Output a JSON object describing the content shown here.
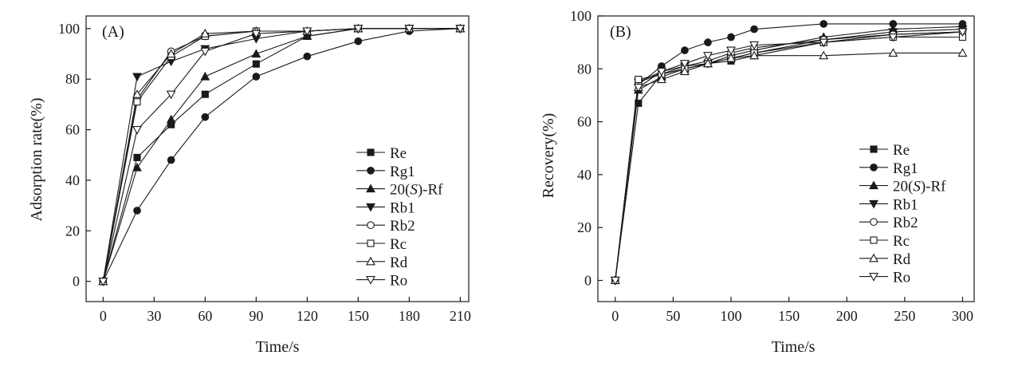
{
  "chart_data": [
    {
      "type": "line",
      "panel": "(A)",
      "xlabel": "Time/s",
      "ylabel": "Adsorption rate(%)",
      "xlim": [
        -10,
        215
      ],
      "ylim": [
        -8,
        105
      ],
      "xticks": [
        0,
        30,
        60,
        90,
        120,
        150,
        180,
        210
      ],
      "yticks": [
        0,
        20,
        40,
        60,
        80,
        100
      ],
      "legend_position": "bottom-right",
      "series": [
        {
          "name": "Re",
          "name_parts": [
            "Re"
          ],
          "marker": "square-filled",
          "x": [
            0,
            20,
            40,
            60,
            90,
            120,
            150,
            180,
            210
          ],
          "y": [
            0,
            49,
            62,
            74,
            86,
            97,
            100,
            100,
            100
          ]
        },
        {
          "name": "Rg1",
          "name_parts": [
            "Rg1"
          ],
          "marker": "circle-filled",
          "x": [
            0,
            20,
            40,
            60,
            90,
            120,
            150,
            180,
            210
          ],
          "y": [
            0,
            28,
            48,
            65,
            81,
            89,
            95,
            99,
            100
          ]
        },
        {
          "name": "20(S)-Rf",
          "name_parts": [
            "20(",
            "S",
            ")-Rf"
          ],
          "marker": "triangle-up-filled",
          "x": [
            0,
            20,
            40,
            60,
            90,
            120,
            150,
            180,
            210
          ],
          "y": [
            0,
            45,
            64,
            81,
            90,
            97,
            100,
            100,
            100
          ]
        },
        {
          "name": "Rb1",
          "name_parts": [
            "Rb1"
          ],
          "marker": "triangle-down-filled",
          "x": [
            0,
            20,
            40,
            60,
            90,
            120,
            150,
            180,
            210
          ],
          "y": [
            0,
            81,
            87,
            92,
            96,
            99,
            100,
            100,
            100
          ]
        },
        {
          "name": "Rb2",
          "name_parts": [
            "Rb2"
          ],
          "marker": "circle-open",
          "x": [
            0,
            20,
            40,
            60,
            90,
            120,
            150,
            180,
            210
          ],
          "y": [
            0,
            72,
            91,
            97,
            99,
            99,
            100,
            100,
            100
          ]
        },
        {
          "name": "Rc",
          "name_parts": [
            "Rc"
          ],
          "marker": "square-open",
          "x": [
            0,
            20,
            40,
            60,
            90,
            120,
            150,
            180,
            210
          ],
          "y": [
            0,
            71,
            89,
            97,
            99,
            99,
            100,
            100,
            100
          ]
        },
        {
          "name": "Rd",
          "name_parts": [
            "Rd"
          ],
          "marker": "triangle-up-open",
          "x": [
            0,
            20,
            40,
            60,
            90,
            120,
            150,
            180,
            210
          ],
          "y": [
            0,
            74,
            90,
            98,
            99,
            99,
            100,
            100,
            100
          ]
        },
        {
          "name": "Ro",
          "name_parts": [
            "Ro"
          ],
          "marker": "triangle-down-open",
          "x": [
            0,
            20,
            40,
            60,
            90,
            120,
            150,
            180,
            210
          ],
          "y": [
            0,
            60,
            74,
            91,
            98,
            99,
            100,
            100,
            100
          ]
        }
      ]
    },
    {
      "type": "line",
      "panel": "(B)",
      "xlabel": "Time/s",
      "ylabel": "Recovery(%)",
      "xlim": [
        -15,
        310
      ],
      "ylim": [
        -8,
        100
      ],
      "xticks": [
        0,
        50,
        100,
        150,
        200,
        250,
        300
      ],
      "yticks": [
        0,
        20,
        40,
        60,
        80,
        100
      ],
      "legend_position": "bottom-right",
      "series": [
        {
          "name": "Re",
          "name_parts": [
            "Re"
          ],
          "marker": "square-filled",
          "x": [
            0,
            20,
            40,
            60,
            80,
            100,
            120,
            180,
            240,
            300
          ],
          "y": [
            0,
            67,
            78,
            80,
            82,
            83,
            85,
            90,
            93,
            94
          ]
        },
        {
          "name": "Rg1",
          "name_parts": [
            "Rg1"
          ],
          "marker": "circle-filled",
          "x": [
            0,
            20,
            40,
            60,
            80,
            100,
            120,
            180,
            240,
            300
          ],
          "y": [
            0,
            74,
            81,
            87,
            90,
            92,
            95,
            97,
            97,
            97
          ]
        },
        {
          "name": "20(S)-Rf",
          "name_parts": [
            "20(",
            "S",
            ")-Rf"
          ],
          "marker": "triangle-up-filled",
          "x": [
            0,
            20,
            40,
            60,
            80,
            100,
            120,
            180,
            240,
            300
          ],
          "y": [
            0,
            72,
            77,
            80,
            82,
            85,
            87,
            92,
            95,
            96
          ]
        },
        {
          "name": "Rb1",
          "name_parts": [
            "Rb1"
          ],
          "marker": "triangle-down-filled",
          "x": [
            0,
            20,
            40,
            60,
            80,
            100,
            120,
            180,
            240,
            300
          ],
          "y": [
            0,
            75,
            79,
            81,
            82,
            84,
            86,
            91,
            94,
            95
          ]
        },
        {
          "name": "Rb2",
          "name_parts": [
            "Rb2"
          ],
          "marker": "circle-open",
          "x": [
            0,
            20,
            40,
            60,
            80,
            100,
            120,
            180,
            240,
            300
          ],
          "y": [
            0,
            75,
            78,
            81,
            83,
            86,
            88,
            91,
            93,
            94
          ]
        },
        {
          "name": "Rc",
          "name_parts": [
            "Rc"
          ],
          "marker": "square-open",
          "x": [
            0,
            20,
            40,
            60,
            80,
            100,
            120,
            180,
            240,
            300
          ],
          "y": [
            0,
            76,
            78,
            80,
            82,
            84,
            86,
            90,
            92,
            92
          ]
        },
        {
          "name": "Rd",
          "name_parts": [
            "Rd"
          ],
          "marker": "triangle-up-open",
          "x": [
            0,
            20,
            40,
            60,
            80,
            100,
            120,
            180,
            240,
            300
          ],
          "y": [
            0,
            73,
            76,
            79,
            82,
            84,
            85,
            85,
            86,
            86
          ]
        },
        {
          "name": "Ro",
          "name_parts": [
            "Ro"
          ],
          "marker": "triangle-down-open",
          "x": [
            0,
            20,
            40,
            60,
            80,
            100,
            120,
            180,
            240,
            300
          ],
          "y": [
            0,
            73,
            79,
            82,
            85,
            87,
            89,
            90,
            92,
            94
          ]
        }
      ]
    }
  ]
}
